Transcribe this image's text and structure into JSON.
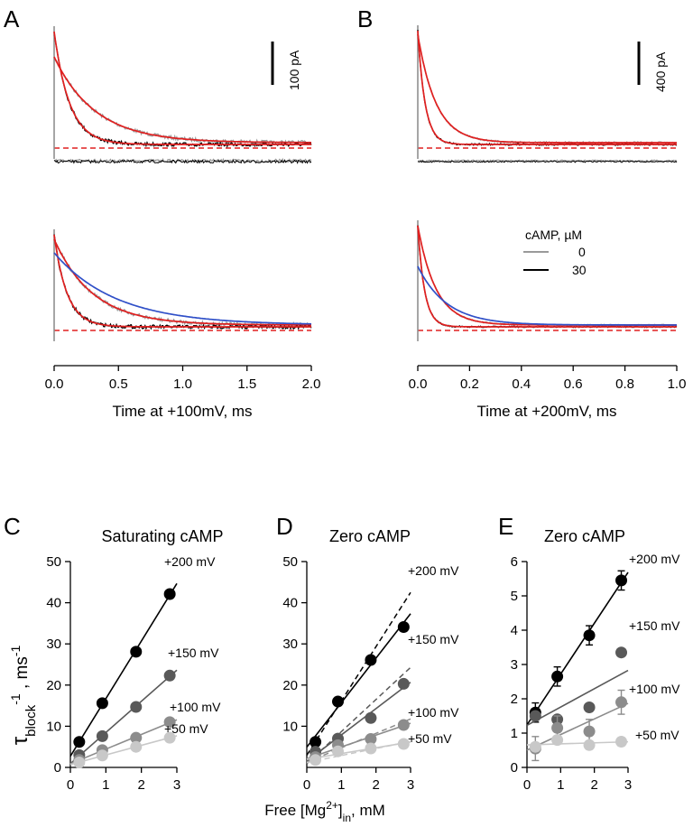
{
  "figure": {
    "colors": {
      "trace_zero_cAMP": "#9a9a9a",
      "trace_30_cAMP": "#000000",
      "fit": "#e02020",
      "fit_alt": "#3050c8",
      "baseline": "#e02020",
      "v200": "#000000",
      "v150": "#595959",
      "v100": "#8c8c8c",
      "v50": "#c8c8c8"
    }
  },
  "chart_data": [
    {
      "panel": "A",
      "type": "line",
      "xlabel": "Time at +100mV, ms",
      "xlim": [
        0,
        2.0
      ],
      "xticks": [
        "0.0",
        "0.5",
        "1.0",
        "1.5",
        "2.0"
      ],
      "scale_bar": "100 pA",
      "series": [
        {
          "label": "0",
          "x": [
            0,
            0.1,
            0.2,
            0.3,
            0.5,
            0.75,
            1.0,
            1.25,
            1.5,
            2.0
          ],
          "y": [
            100,
            71,
            54,
            44,
            31,
            22,
            17,
            15,
            14,
            13
          ]
        },
        {
          "label": "30",
          "x": [
            0,
            0.05,
            0.1,
            0.2,
            0.3,
            0.5,
            0.75,
            1.0,
            1.5,
            2.0
          ],
          "y": [
            129,
            76,
            50,
            28,
            18,
            12,
            11,
            11,
            11,
            11
          ]
        }
      ]
    },
    {
      "panel": "B",
      "type": "line",
      "xlabel": "Time at +200mV, ms",
      "xlim": [
        0,
        1.0
      ],
      "xticks": [
        "0.0",
        "0.2",
        "0.4",
        "0.6",
        "0.8",
        "1.0"
      ],
      "scale_bar": "400 pA",
      "legend": {
        "title": "cAMP, µM",
        "entries": [
          "0",
          "30"
        ]
      },
      "series": [
        {
          "label": "0",
          "x": [
            0,
            0.02,
            0.05,
            0.1,
            0.2,
            0.4,
            0.6,
            0.8,
            1.0
          ],
          "y": [
            1000,
            760,
            520,
            300,
            140,
            70,
            55,
            50,
            48
          ]
        },
        {
          "label": "30",
          "x": [
            0,
            0.01,
            0.02,
            0.05,
            0.1,
            0.2,
            0.4,
            1.0
          ],
          "y": [
            1100,
            820,
            600,
            260,
            100,
            55,
            48,
            48
          ]
        }
      ]
    },
    {
      "panel": "C",
      "type": "scatter",
      "title": "Saturating cAMP",
      "ylabel": "τblock-1 , ms-1",
      "ylabel_parts": {
        "tau": "τ",
        "sub": "block",
        "sup1": "-1",
        "unit": " , ms",
        "sup2": "-1"
      },
      "xlabel": "Free [Mg2+]in, mM",
      "xlim": [
        0,
        3
      ],
      "ylim": [
        0,
        50
      ],
      "xticks": [
        "0",
        "1",
        "2",
        "3"
      ],
      "yticks": [
        "0",
        "10",
        "20",
        "30",
        "40",
        "50"
      ],
      "x": [
        0.25,
        0.9,
        1.85,
        2.8
      ],
      "series": [
        {
          "name": "+200 mV",
          "values": [
            6.2,
            15.6,
            28.1,
            42.1
          ]
        },
        {
          "name": "+150 mV",
          "values": [
            3.0,
            7.6,
            14.7,
            22.3
          ]
        },
        {
          "name": "+100 mV",
          "values": [
            1.8,
            4.2,
            7.2,
            11.0
          ]
        },
        {
          "name": "+50 mV",
          "values": [
            1.2,
            2.9,
            5.0,
            7.2
          ]
        }
      ]
    },
    {
      "panel": "D",
      "type": "scatter",
      "title": "Zero cAMP",
      "xlim": [
        0,
        3
      ],
      "ylim": [
        0,
        50
      ],
      "xticks": [
        "0",
        "1",
        "2",
        "3"
      ],
      "yticks": [
        "10",
        "20",
        "30",
        "40",
        "50"
      ],
      "x": [
        0.25,
        0.9,
        1.85,
        2.8
      ],
      "series": [
        {
          "name": "+200 mV",
          "values": [
            6.2,
            16.0,
            26.1,
            34.1
          ]
        },
        {
          "name": "+150 mV",
          "values": [
            3.8,
            7.0,
            12.0,
            20.3
          ]
        },
        {
          "name": "+100 mV",
          "values": [
            2.5,
            5.4,
            6.9,
            10.3
          ]
        },
        {
          "name": "+50 mV",
          "values": [
            1.8,
            3.9,
            4.6,
            5.7
          ]
        }
      ]
    },
    {
      "panel": "E",
      "type": "scatter",
      "title": "Zero cAMP",
      "xlim": [
        0,
        3
      ],
      "ylim": [
        0,
        6
      ],
      "xticks": [
        "0",
        "1",
        "2",
        "3"
      ],
      "yticks": [
        "0",
        "1",
        "2",
        "3",
        "4",
        "5",
        "6"
      ],
      "x": [
        0.25,
        0.9,
        1.85,
        2.8
      ],
      "series": [
        {
          "name": "+200 mV",
          "values": [
            1.6,
            2.65,
            3.85,
            5.45
          ]
        },
        {
          "name": "+150 mV",
          "values": [
            1.5,
            1.4,
            1.75,
            3.35
          ]
        },
        {
          "name": "+100 mV",
          "values": [
            0.55,
            1.15,
            1.05,
            1.9
          ]
        },
        {
          "name": "+50 mV",
          "values": [
            0.6,
            0.8,
            0.65,
            0.75
          ]
        }
      ]
    }
  ]
}
